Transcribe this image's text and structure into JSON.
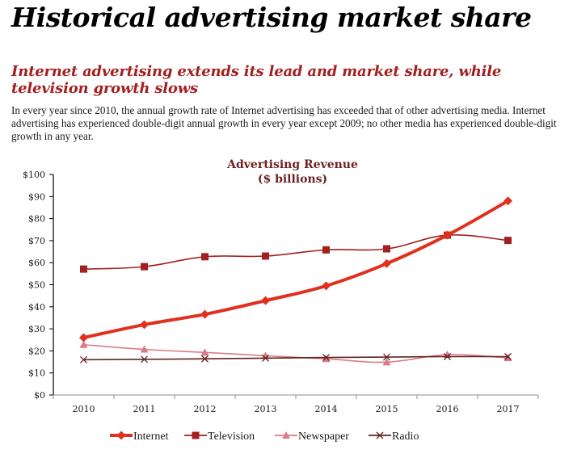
{
  "page": {
    "title": "Historical advertising market share",
    "subtitle": "Internet advertising extends its lead and market share, while television growth slows",
    "body": "In every year since 2010, the annual growth rate of Internet advertising has exceeded that of other advertising media. Internet advertising has experienced double-digit annual growth in every year except 2009; no other media has experienced double-digit growth in any year."
  },
  "chart_data": {
    "type": "line",
    "title": "Advertising Revenue",
    "title_line2": "($ billions)",
    "xlabel": "",
    "ylabel": "",
    "categories": [
      "2010",
      "2011",
      "2012",
      "2013",
      "2014",
      "2015",
      "2016",
      "2017"
    ],
    "ylim": [
      0,
      100
    ],
    "yticks": [
      0,
      10,
      20,
      30,
      40,
      50,
      60,
      70,
      80,
      90,
      100
    ],
    "ytick_labels": [
      "$0",
      "$10",
      "$20",
      "$30",
      "$40",
      "$50",
      "$60",
      "$70",
      "$80",
      "$90",
      "$100"
    ],
    "grid": false,
    "legend_position": "bottom",
    "series": [
      {
        "name": "Internet",
        "marker": "diamond",
        "color": "#e0301e",
        "weight": "thick",
        "values": [
          26.0,
          31.9,
          36.6,
          42.8,
          49.5,
          59.6,
          72.5,
          88.0
        ]
      },
      {
        "name": "Television",
        "marker": "square",
        "color": "#a32020",
        "weight": "thin",
        "values": [
          57.1,
          58.2,
          62.7,
          63.0,
          65.8,
          66.3,
          72.5,
          70.1
        ]
      },
      {
        "name": "Newspaper",
        "marker": "triangle",
        "color": "#db7b8a",
        "weight": "thin",
        "values": [
          22.8,
          20.7,
          19.3,
          17.8,
          16.4,
          14.9,
          18.3,
          16.8
        ]
      },
      {
        "name": "Radio",
        "marker": "x",
        "color": "#602320",
        "weight": "thin",
        "values": [
          16.0,
          16.2,
          16.4,
          16.7,
          17.0,
          17.2,
          17.4,
          17.4
        ]
      }
    ]
  }
}
